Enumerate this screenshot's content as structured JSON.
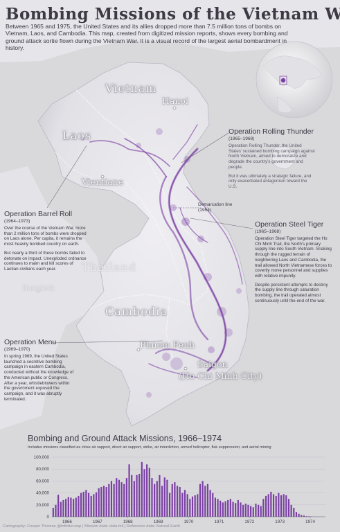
{
  "title": "Bombing Missions of the Vietnam War",
  "intro": "Between 1965 and 1975, the United States and its allies dropped more than 7.5 million tons of bombs on Vietnam, Laos, and Cambodia. This map, created from digitized mission reports, shows every bombing and ground attack sortie flown during the Vietnam War. It is a visual record of the largest aerial bombardment in history.",
  "labels": {
    "vietnam": "Vietnam",
    "laos": "Laos",
    "thailand": "Thailand",
    "cambodia": "Cambodia",
    "hanoi": "Hanoi",
    "vientiane": "Vientiane",
    "bangkok": "Bangkok",
    "phnom_penh": "Phnom Penh",
    "saigon": "Saigon",
    "hcmc": "(Ho Chi Minh City)"
  },
  "demarcation": {
    "label": "Demarcation line",
    "year": "(1954)"
  },
  "operations": {
    "rolling_thunder": {
      "title": "Operation Rolling Thunder",
      "years": "(1965–1968)",
      "p1": "Operation Rolling Thunder, the United States' sustained bombing campaign against North Vietnam, aimed to demoralize and degrade the country's government and people.",
      "p2": "But it was ultimately a strategic failure, and only exacerbated antagonism toward the U.S."
    },
    "barrel_roll": {
      "title": "Operation Barrel Roll",
      "years": "(1964–1973)",
      "p1": "Over the course of the Vietnam War, more than 2 million tons of bombs were dropped on Laos alone. Per capita, it remains the most heavily bombed country on earth.",
      "p2": "But nearly a third of these bombs failed to detonate on impact. Unexploded ordnance continues to maim and kill scores of Laotian civilians each year."
    },
    "steel_tiger": {
      "title": "Operation Steel Tiger",
      "years": "(1965–1968)",
      "p1": "Operation Steel Tiger targeted the Ho Chi Minh Trail, the North's primary supply line into South Vietnam. Snaking through the rugged terrain of neighboring Laos and Cambodia, the trail allowed North Vietnamese forces to covertly move personnel and supplies with relative impunity.",
      "p2": "Despite persistent attempts to destroy the supply line through saturation bombing, the trail operated almost continuously until the end of the war."
    },
    "menu": {
      "title": "Operation Menu",
      "years": "(1969–1970)",
      "p1": "In spring 1969, the United States launched a secretive bombing campaign in eastern Cambodia, conducted without the knowledge of the American public or Congress. After a year, whistleblowers within the government exposed the campaign, and it was abruptly terminated."
    }
  },
  "chart": {
    "title": "Bombing and Ground Attack Missions, 1966–1974",
    "subtitle": "Includes missions classified as close air support, direct air support, strike, air interdiction, armed helicopter, flak suppression, and aerial mining"
  },
  "chart_data": {
    "type": "bar",
    "title": "Bombing and Ground Attack Missions, 1966–1974",
    "ylim": [
      0,
      100000
    ],
    "yticks": [
      "100,000",
      "80,000",
      "60,000",
      "40,000",
      "20,000",
      "0"
    ],
    "ytick_values": [
      100000,
      80000,
      60000,
      40000,
      20000,
      0
    ],
    "xticks": [
      "1966",
      "1967",
      "1968",
      "1969",
      "1970",
      "1971",
      "1972",
      "1973",
      "1974"
    ],
    "start_year": 1965.5,
    "end_year": 1974.5,
    "values": [
      15000,
      20000,
      37000,
      25000,
      28000,
      30000,
      33000,
      32000,
      30000,
      32000,
      35000,
      40000,
      42000,
      45000,
      40000,
      35000,
      38000,
      41000,
      48000,
      50000,
      52000,
      50000,
      55000,
      60000,
      55000,
      65000,
      62000,
      58000,
      55000,
      65000,
      88000,
      70000,
      60000,
      70000,
      72000,
      92000,
      80000,
      88000,
      82000,
      65000,
      55000,
      60000,
      70000,
      52000,
      66000,
      62000,
      40000,
      55000,
      58000,
      52000,
      50000,
      40000,
      45000,
      38000,
      30000,
      34000,
      36000,
      38000,
      55000,
      60000,
      52000,
      55000,
      45000,
      40000,
      32000,
      30000,
      27000,
      24000,
      26000,
      28000,
      30000,
      25000,
      23000,
      28000,
      24000,
      20000,
      22000,
      20000,
      18000,
      16000,
      22000,
      20000,
      18000,
      30000,
      35000,
      38000,
      42000,
      38000,
      35000,
      40000,
      36000,
      38000,
      36000,
      30000,
      20000,
      15000,
      8000,
      5000,
      3000,
      2000,
      1000,
      800,
      500,
      300,
      200,
      100,
      100,
      0
    ],
    "grid": true,
    "bar_color": "#7b3fa4"
  },
  "credits": "Cartography: Cooper Thomas @infinitecoop | Mission data: data.mil | Reference data: Natural Earth",
  "colors": {
    "accent": "#7b3fa4",
    "land": "#ecebef",
    "sea": "#d9d9dc",
    "text": "#3d3a45"
  },
  "icons": [
    "globe-inset-icon"
  ]
}
